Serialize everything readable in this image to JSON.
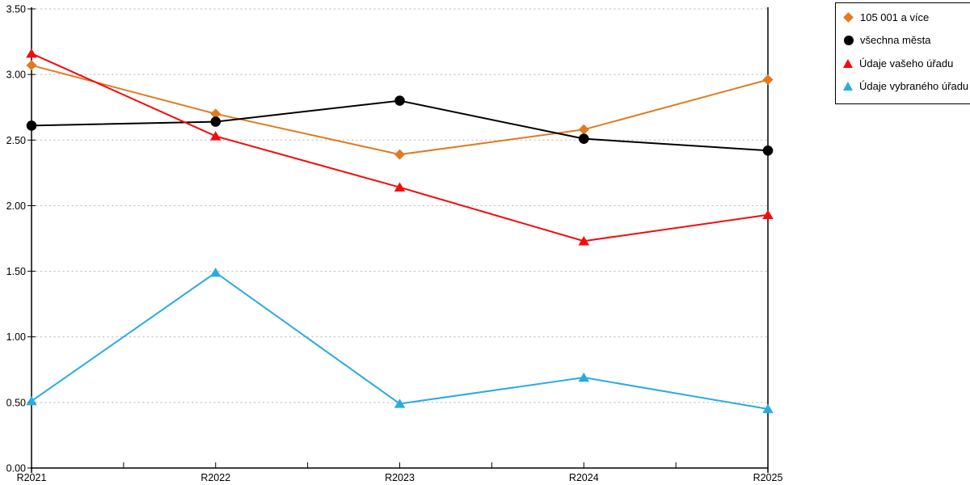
{
  "chart_data": {
    "type": "line",
    "title": "",
    "xlabel": "",
    "ylabel": "",
    "x_categories": [
      "R2021",
      "R2022",
      "R2023",
      "R2024",
      "R2025"
    ],
    "y_tick_labels": [
      "0.00",
      "0.50",
      "1.00",
      "1.50",
      "2.00",
      "2.50",
      "3.00",
      "3.50"
    ],
    "ylim": [
      0,
      3.5
    ],
    "grid": "horizontal-dotted",
    "legend_position": "outside-top-right",
    "colors": {
      "grid": "#b3b3b3",
      "axis": "#000000",
      "background": "#ffffff",
      "orange": "#e07b21",
      "black": "#000000",
      "red": "#f40b0b",
      "blue": "#29abe2"
    },
    "series": [
      {
        "name": "105 001 a více",
        "marker": "diamond",
        "color": "#e07b21",
        "values": [
          3.07,
          2.7,
          2.39,
          2.58,
          2.96
        ]
      },
      {
        "name": "všechna města",
        "marker": "circle",
        "color": "#000000",
        "values": [
          2.61,
          2.64,
          2.8,
          2.51,
          2.42
        ]
      },
      {
        "name": "Údaje vašeho úřadu",
        "marker": "triangle",
        "color": "#f40b0b",
        "values": [
          3.16,
          2.53,
          2.14,
          1.73,
          1.93
        ]
      },
      {
        "name": "Údaje vybraného úřadu",
        "marker": "triangle",
        "color": "#29abe2",
        "values": [
          0.51,
          1.49,
          0.49,
          0.69,
          0.45
        ]
      }
    ]
  }
}
